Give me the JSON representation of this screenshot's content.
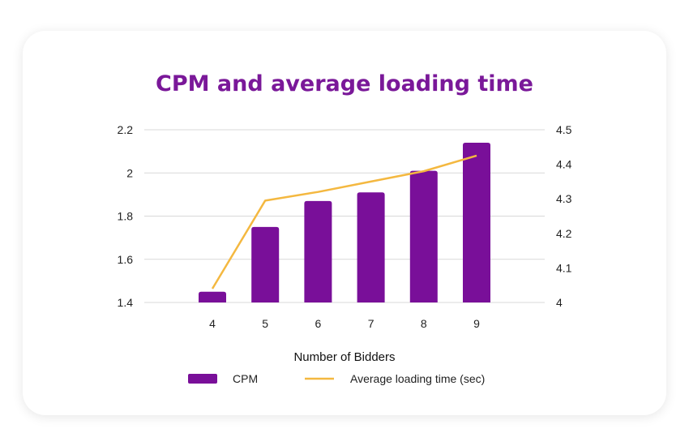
{
  "chart_data": {
    "type": "bar",
    "title": "CPM and average loading time",
    "xlabel": "Number of Bidders",
    "categories": [
      "4",
      "5",
      "6",
      "7",
      "8",
      "9"
    ],
    "series": [
      {
        "name": "CPM",
        "type": "bar",
        "axis": "left",
        "color": "#790f99",
        "values": [
          1.45,
          1.75,
          1.87,
          1.91,
          2.01,
          2.14
        ]
      },
      {
        "name": "Average loading time (sec)",
        "type": "line",
        "axis": "right",
        "color": "#f4b840",
        "values": [
          4.04,
          4.295,
          4.32,
          4.35,
          4.38,
          4.425
        ]
      }
    ],
    "y_left": {
      "min": 1.4,
      "max": 2.2,
      "ticks": [
        "1.4",
        "1.6",
        "1.8",
        "2",
        "2.2"
      ]
    },
    "y_right": {
      "min": 4,
      "max": 4.5,
      "ticks": [
        "4",
        "4.1",
        "4.2",
        "4.3",
        "4.4",
        "4.5"
      ]
    },
    "grid": true,
    "legend_position": "bottom"
  }
}
